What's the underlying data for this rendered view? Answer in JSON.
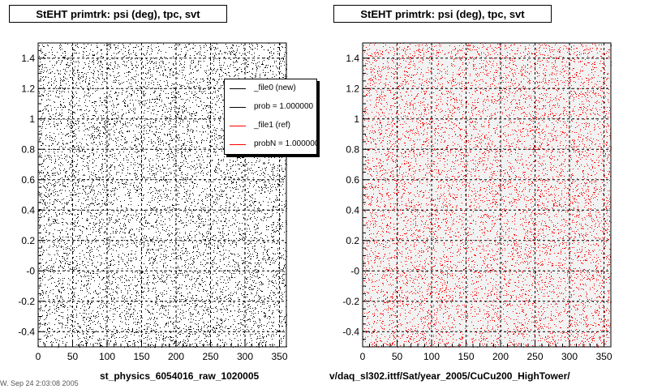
{
  "charts": [
    {
      "id": "left",
      "title": "StEHT primtrk: psi (deg), tpc, svt",
      "caption": "st_physics_6054016_raw_1020005",
      "color": "#000000",
      "bg": "#ffffff",
      "legend": [
        {
          "label": "_file0 (new)",
          "color": "#000000"
        },
        {
          "label": "prob = 1.000000",
          "color": "#000000"
        },
        {
          "label": "_file1 (ref)",
          "color": "#ff0000"
        },
        {
          "label": "probN = 1.000000",
          "color": "#ff0000"
        }
      ]
    },
    {
      "id": "right",
      "title": "StEHT primtrk: psi (deg), tpc, svt",
      "caption": "v/daq_sl302.ittf/Sat/year_2005/CuCu200_HighTower/",
      "color": "#ff0000",
      "bg": "#f2f2f2"
    }
  ],
  "chart_data": [
    {
      "type": "scatter",
      "title": "StEHT primtrk: psi (deg), tpc, svt",
      "xlim": [
        0,
        360
      ],
      "ylim": [
        -0.5,
        1.5
      ],
      "x_ticks": [
        0,
        50,
        100,
        150,
        200,
        250,
        300,
        350
      ],
      "y_ticks": [
        "-0.4",
        "-0.2",
        "-0",
        "0.2",
        "0.4",
        "0.6",
        "0.8",
        "1",
        "1.2",
        "1.4"
      ],
      "grid": true,
      "series": [
        {
          "name": "_file0 (new)",
          "color": "#000000",
          "distribution": "uniform"
        }
      ]
    },
    {
      "type": "scatter",
      "title": "StEHT primtrk: psi (deg), tpc, svt",
      "xlim": [
        0,
        360
      ],
      "ylim": [
        -0.5,
        1.5
      ],
      "x_ticks": [
        0,
        50,
        100,
        150,
        200,
        250,
        300,
        350
      ],
      "y_ticks": [
        "-0.4",
        "-0.2",
        "-0",
        "0.2",
        "0.4",
        "0.6",
        "0.8",
        "1",
        "1.2",
        "1.4"
      ],
      "grid": true,
      "series": [
        {
          "name": "_file1 (ref)",
          "color": "#ff0000",
          "distribution": "uniform"
        }
      ]
    }
  ],
  "footer_snippet": "W. Sep 24 2:03:08 2005"
}
